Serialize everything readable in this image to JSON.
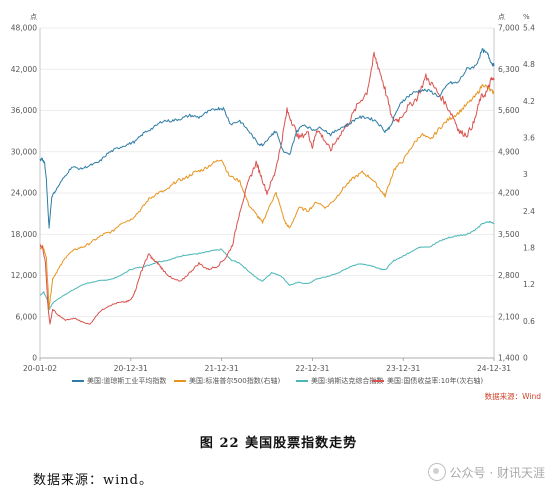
{
  "chart_data": {
    "type": "line",
    "left_axis_unit": "点",
    "right_axis_unit_1": "点",
    "right_axis_unit_2": "%",
    "left_ticks": [
      "0",
      "6,000",
      "12,000",
      "18,000",
      "24,000",
      "30,000",
      "36,000",
      "42,000",
      "48,000"
    ],
    "right_ticks_1": [
      "1,400",
      "2,100",
      "2,800",
      "3,500",
      "4,200",
      "4,900",
      "5,600",
      "6,300",
      "7,000"
    ],
    "right_ticks_2": [
      "0",
      "0.6",
      "1.2",
      "1.8",
      "2.4",
      "3",
      "3.6",
      "4.2",
      "4.8",
      "5.4"
    ],
    "x_ticks": [
      "20-01-02",
      "20-12-31",
      "21-12-31",
      "22-12-31",
      "23-12-31",
      "24-12-31"
    ],
    "ylim_left": [
      0,
      48000
    ],
    "ylim_right_1": [
      1400,
      7000
    ],
    "ylim_right_2": [
      0,
      5.4
    ],
    "series": [
      {
        "name": "美国:道琼斯工业平均指数",
        "color": "#2e7ca5",
        "axis": "left",
        "points": [
          [
            0,
            28800
          ],
          [
            0.02,
            29000
          ],
          [
            0.05,
            28400
          ],
          [
            0.07,
            26000
          ],
          [
            0.09,
            21000
          ],
          [
            0.1,
            19000
          ],
          [
            0.13,
            23500
          ],
          [
            0.18,
            24500
          ],
          [
            0.25,
            26000
          ],
          [
            0.35,
            27800
          ],
          [
            0.45,
            27500
          ],
          [
            0.55,
            28000
          ],
          [
            0.65,
            28500
          ],
          [
            0.75,
            29800
          ],
          [
            0.85,
            30500
          ],
          [
            0.95,
            31000
          ],
          [
            1.05,
            31500
          ],
          [
            1.15,
            32800
          ],
          [
            1.25,
            33500
          ],
          [
            1.35,
            34500
          ],
          [
            1.45,
            34500
          ],
          [
            1.55,
            34800
          ],
          [
            1.65,
            35300
          ],
          [
            1.75,
            35000
          ],
          [
            1.85,
            35800
          ],
          [
            1.95,
            36300
          ],
          [
            2.02,
            36300
          ],
          [
            2.1,
            34000
          ],
          [
            2.2,
            34500
          ],
          [
            2.3,
            33000
          ],
          [
            2.4,
            31200
          ],
          [
            2.45,
            31000
          ],
          [
            2.55,
            32500
          ],
          [
            2.6,
            33000
          ],
          [
            2.68,
            30000
          ],
          [
            2.75,
            29500
          ],
          [
            2.82,
            32800
          ],
          [
            2.9,
            34000
          ],
          [
            3.0,
            33200
          ],
          [
            3.1,
            33500
          ],
          [
            3.2,
            32500
          ],
          [
            3.3,
            33400
          ],
          [
            3.4,
            34000
          ],
          [
            3.5,
            35000
          ],
          [
            3.6,
            35000
          ],
          [
            3.7,
            34500
          ],
          [
            3.8,
            33000
          ],
          [
            3.85,
            33500
          ],
          [
            3.95,
            36500
          ],
          [
            4.0,
            37500
          ],
          [
            4.1,
            38500
          ],
          [
            4.2,
            39000
          ],
          [
            4.3,
            38800
          ],
          [
            4.4,
            38000
          ],
          [
            4.5,
            40000
          ],
          [
            4.6,
            40000
          ],
          [
            4.7,
            42000
          ],
          [
            4.8,
            42500
          ],
          [
            4.87,
            44800
          ],
          [
            4.93,
            44200
          ],
          [
            4.97,
            43000
          ],
          [
            5.0,
            42500
          ]
        ]
      },
      {
        "name": "美国:标准普尔500指数(右轴)",
        "color": "#e7941f",
        "axis": "right1",
        "points": [
          [
            0,
            3250
          ],
          [
            0.03,
            3300
          ],
          [
            0.07,
            3100
          ],
          [
            0.1,
            2250
          ],
          [
            0.14,
            2750
          ],
          [
            0.2,
            2900
          ],
          [
            0.3,
            3150
          ],
          [
            0.4,
            3250
          ],
          [
            0.5,
            3300
          ],
          [
            0.6,
            3400
          ],
          [
            0.7,
            3500
          ],
          [
            0.8,
            3550
          ],
          [
            0.9,
            3700
          ],
          [
            1.0,
            3750
          ],
          [
            1.1,
            3900
          ],
          [
            1.2,
            4100
          ],
          [
            1.3,
            4200
          ],
          [
            1.4,
            4250
          ],
          [
            1.5,
            4400
          ],
          [
            1.6,
            4450
          ],
          [
            1.7,
            4550
          ],
          [
            1.8,
            4600
          ],
          [
            1.9,
            4700
          ],
          [
            2.0,
            4780
          ],
          [
            2.08,
            4500
          ],
          [
            2.2,
            4400
          ],
          [
            2.3,
            4000
          ],
          [
            2.4,
            3800
          ],
          [
            2.45,
            3700
          ],
          [
            2.55,
            4050
          ],
          [
            2.6,
            4200
          ],
          [
            2.7,
            3700
          ],
          [
            2.75,
            3600
          ],
          [
            2.85,
            3950
          ],
          [
            2.95,
            3900
          ],
          [
            3.05,
            4050
          ],
          [
            3.15,
            3950
          ],
          [
            3.25,
            4100
          ],
          [
            3.35,
            4300
          ],
          [
            3.45,
            4450
          ],
          [
            3.55,
            4550
          ],
          [
            3.65,
            4450
          ],
          [
            3.75,
            4250
          ],
          [
            3.8,
            4150
          ],
          [
            3.9,
            4600
          ],
          [
            4.0,
            4750
          ],
          [
            4.1,
            5000
          ],
          [
            4.2,
            5200
          ],
          [
            4.3,
            5100
          ],
          [
            4.4,
            5300
          ],
          [
            4.5,
            5450
          ],
          [
            4.6,
            5550
          ],
          [
            4.7,
            5700
          ],
          [
            4.8,
            5850
          ],
          [
            4.88,
            6050
          ],
          [
            4.95,
            5950
          ],
          [
            5.0,
            5900
          ]
        ]
      },
      {
        "name": "美国:纳斯达克综合指数",
        "color": "#4ab6b6",
        "axis": "left",
        "points": [
          [
            0,
            9100
          ],
          [
            0.04,
            9600
          ],
          [
            0.08,
            8500
          ],
          [
            0.1,
            7000
          ],
          [
            0.14,
            8000
          ],
          [
            0.2,
            8600
          ],
          [
            0.3,
            9400
          ],
          [
            0.4,
            10200
          ],
          [
            0.5,
            10800
          ],
          [
            0.6,
            11100
          ],
          [
            0.7,
            11300
          ],
          [
            0.8,
            11500
          ],
          [
            0.9,
            12100
          ],
          [
            1.0,
            12900
          ],
          [
            1.1,
            13200
          ],
          [
            1.2,
            13500
          ],
          [
            1.3,
            14000
          ],
          [
            1.4,
            14200
          ],
          [
            1.5,
            14600
          ],
          [
            1.6,
            15000
          ],
          [
            1.7,
            15100
          ],
          [
            1.8,
            15300
          ],
          [
            1.9,
            15600
          ],
          [
            2.0,
            15800
          ],
          [
            2.1,
            14300
          ],
          [
            2.2,
            13800
          ],
          [
            2.3,
            12600
          ],
          [
            2.4,
            11500
          ],
          [
            2.45,
            11200
          ],
          [
            2.55,
            12400
          ],
          [
            2.65,
            12000
          ],
          [
            2.75,
            10600
          ],
          [
            2.85,
            11000
          ],
          [
            2.95,
            10800
          ],
          [
            3.05,
            11500
          ],
          [
            3.15,
            11800
          ],
          [
            3.25,
            12200
          ],
          [
            3.35,
            12800
          ],
          [
            3.45,
            13500
          ],
          [
            3.55,
            13700
          ],
          [
            3.65,
            13400
          ],
          [
            3.75,
            13000
          ],
          [
            3.8,
            12800
          ],
          [
            3.9,
            14200
          ],
          [
            4.0,
            14800
          ],
          [
            4.1,
            15600
          ],
          [
            4.2,
            16200
          ],
          [
            4.3,
            16200
          ],
          [
            4.4,
            17000
          ],
          [
            4.5,
            17500
          ],
          [
            4.6,
            17800
          ],
          [
            4.7,
            18000
          ],
          [
            4.8,
            18700
          ],
          [
            4.88,
            19600
          ],
          [
            4.95,
            19800
          ],
          [
            5.0,
            19600
          ]
        ]
      },
      {
        "name": "美国:国债收益率:10年(次右轴)",
        "color": "#d9534f",
        "axis": "right2",
        "points": [
          [
            0,
            1.85
          ],
          [
            0.03,
            1.8
          ],
          [
            0.06,
            1.55
          ],
          [
            0.09,
            0.8
          ],
          [
            0.11,
            0.55
          ],
          [
            0.14,
            0.8
          ],
          [
            0.2,
            0.7
          ],
          [
            0.28,
            0.62
          ],
          [
            0.38,
            0.65
          ],
          [
            0.45,
            0.6
          ],
          [
            0.55,
            0.55
          ],
          [
            0.65,
            0.75
          ],
          [
            0.75,
            0.85
          ],
          [
            0.85,
            0.9
          ],
          [
            0.95,
            0.92
          ],
          [
            1.0,
            0.95
          ],
          [
            1.05,
            1.1
          ],
          [
            1.1,
            1.35
          ],
          [
            1.15,
            1.55
          ],
          [
            1.2,
            1.7
          ],
          [
            1.25,
            1.6
          ],
          [
            1.3,
            1.55
          ],
          [
            1.35,
            1.45
          ],
          [
            1.45,
            1.3
          ],
          [
            1.55,
            1.25
          ],
          [
            1.65,
            1.4
          ],
          [
            1.75,
            1.55
          ],
          [
            1.85,
            1.45
          ],
          [
            1.95,
            1.5
          ],
          [
            2.05,
            1.65
          ],
          [
            2.12,
            1.85
          ],
          [
            2.2,
            2.4
          ],
          [
            2.3,
            2.9
          ],
          [
            2.38,
            3.2
          ],
          [
            2.43,
            3.0
          ],
          [
            2.5,
            2.7
          ],
          [
            2.58,
            3.0
          ],
          [
            2.65,
            3.45
          ],
          [
            2.72,
            4.05
          ],
          [
            2.78,
            3.85
          ],
          [
            2.85,
            3.6
          ],
          [
            2.95,
            3.7
          ],
          [
            3.0,
            3.45
          ],
          [
            3.05,
            3.75
          ],
          [
            3.12,
            3.6
          ],
          [
            3.2,
            3.4
          ],
          [
            3.3,
            3.65
          ],
          [
            3.4,
            3.85
          ],
          [
            3.5,
            4.15
          ],
          [
            3.6,
            4.35
          ],
          [
            3.68,
            4.95
          ],
          [
            3.73,
            4.75
          ],
          [
            3.8,
            4.4
          ],
          [
            3.88,
            3.9
          ],
          [
            3.95,
            3.9
          ],
          [
            4.05,
            4.1
          ],
          [
            4.15,
            4.25
          ],
          [
            4.25,
            4.6
          ],
          [
            4.33,
            4.45
          ],
          [
            4.45,
            4.2
          ],
          [
            4.55,
            3.95
          ],
          [
            4.62,
            3.7
          ],
          [
            4.7,
            3.65
          ],
          [
            4.78,
            3.85
          ],
          [
            4.85,
            4.25
          ],
          [
            4.92,
            4.35
          ],
          [
            4.97,
            4.55
          ],
          [
            5.0,
            4.55
          ]
        ]
      }
    ],
    "source_note": "数据来源：Wind"
  },
  "caption": "图 22   美国股票指数走势",
  "data_source": "数据来源：wind。",
  "watermark": "公众号 · 财讯天涯"
}
